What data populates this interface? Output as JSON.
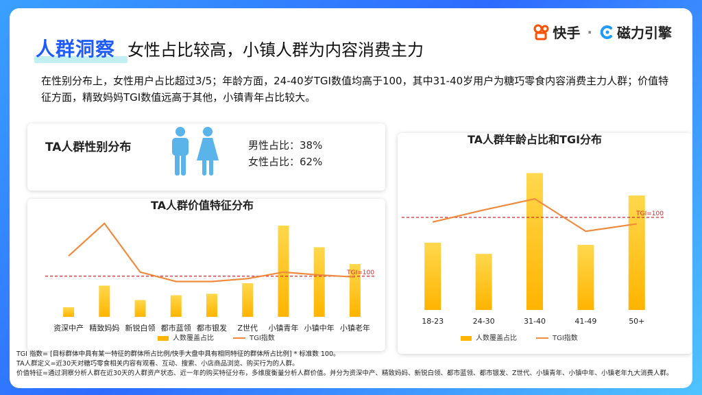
{
  "header": {
    "highlight": "人群洞察",
    "subtitle": "女性占比较高，小镇人群为内容消费主力",
    "logo_left": "快手",
    "logo_sep": "·",
    "logo_right": "磁力引擎"
  },
  "summary": "在性别分布上，女性用户占比超过3/5；年龄方面，24-40岁TGI数值均高于100，其中31-40岁用户为糖巧零食内容消费主力人群；价值特征方面，精致妈妈TGI数值远高于其他，小镇青年占比较大。",
  "gender": {
    "title": "TA人群性别分布",
    "male": "男性占比：38%",
    "female": "女性占比：62%"
  },
  "footnotes": [
    "TGI 指数= [目标群体中具有某一特征的群体所占比例/快手大盘中具有相同特征的群体所占比例] * 标准数 100。",
    "TA人群定义=近30天对糖巧零食相关内容有观看、互动、搜索、小店商品浏览、购买行为的人群。",
    "价值特征=通过洞察分析人群在近30天的人群资产状态、近一年的购买特征分布，多维度衡量分析人群价值。并分为资深中产、精致妈妈、新锐白领、都市蓝领、都市银发、Z世代、小镇青年、小镇中年、小镇老年九大消费人群。"
  ],
  "colors": {
    "bar_top": "#ffd84d",
    "bar_bottom": "#ffb400",
    "line": "#f08a3c",
    "ref": "#d7262b",
    "accent": "#1d5bff"
  },
  "chart_data": [
    {
      "type": "bar",
      "title": "TA人群价值特征分布",
      "categories": [
        "资深中产",
        "精致妈妈",
        "新锐白领",
        "都市蓝领",
        "都市银发",
        "Z世代",
        "小镇青年",
        "小镇中年",
        "小镇老年"
      ],
      "series": [
        {
          "name": "人数覆盖占比",
          "type": "bar",
          "values": [
            2,
            6.5,
            3.5,
            4.5,
            4.8,
            7,
            19,
            14.5,
            11
          ]
        },
        {
          "name": "TGI指数",
          "type": "line",
          "values": [
            150,
            230,
            110,
            87,
            87,
            94,
            110,
            103,
            98
          ]
        }
      ],
      "reference_line": {
        "label": "TGI=100",
        "value": 100
      },
      "ylim_bar": [
        0,
        22
      ],
      "ylim_line": [
        0,
        260
      ],
      "legend": "bottom"
    },
    {
      "type": "bar",
      "title": "TA人群年龄占比和TGI分布",
      "categories": [
        "18-23",
        "24-30",
        "31-40",
        "41-49",
        "50+"
      ],
      "series": [
        {
          "name": "人数覆盖占比",
          "type": "bar",
          "values": [
            15,
            12.5,
            30.5,
            14.5,
            25.5
          ]
        },
        {
          "name": "TGI指数",
          "type": "line",
          "values": [
            95,
            108,
            120,
            85,
            93
          ]
        }
      ],
      "reference_line": {
        "label": "TGI=100",
        "value": 100
      },
      "ylim_bar": [
        0,
        33
      ],
      "ylim_line": [
        0,
        160
      ],
      "legend": "bottom"
    }
  ]
}
